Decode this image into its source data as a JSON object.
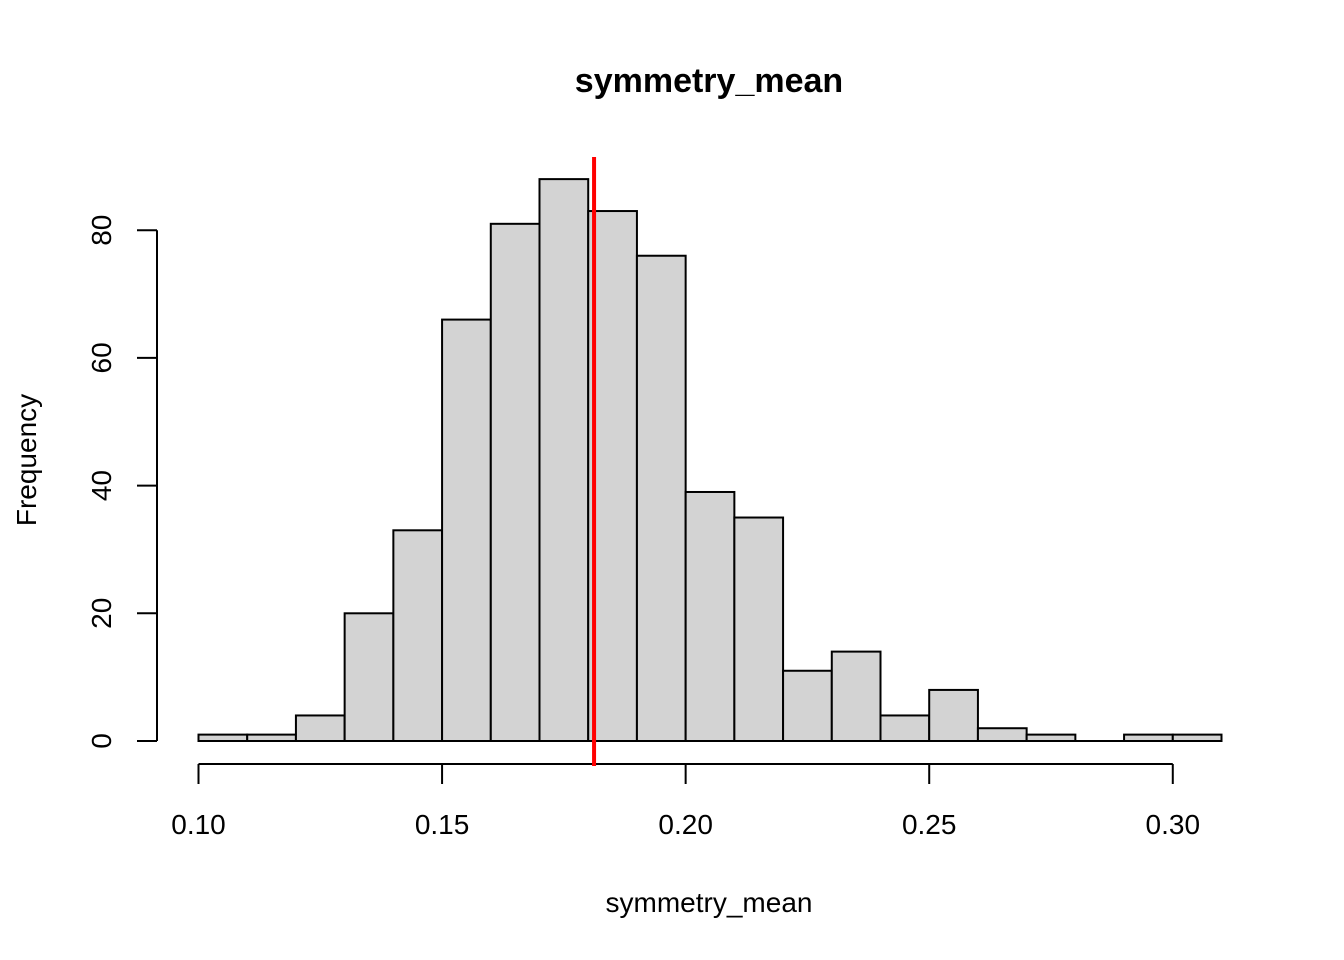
{
  "chart_data": {
    "type": "bar",
    "title": "symmetry_mean",
    "xlabel": "symmetry_mean",
    "ylabel": "Frequency",
    "xlim": [
      0.1,
      0.31
    ],
    "ylim": [
      0,
      88
    ],
    "x_ticks": [
      "0.10",
      "0.15",
      "0.20",
      "0.25",
      "0.30"
    ],
    "y_ticks": [
      "0",
      "20",
      "40",
      "60",
      "80"
    ],
    "bins": [
      {
        "from": 0.1,
        "to": 0.11,
        "count": 1
      },
      {
        "from": 0.11,
        "to": 0.12,
        "count": 1
      },
      {
        "from": 0.12,
        "to": 0.13,
        "count": 4
      },
      {
        "from": 0.13,
        "to": 0.14,
        "count": 20
      },
      {
        "from": 0.14,
        "to": 0.15,
        "count": 33
      },
      {
        "from": 0.15,
        "to": 0.16,
        "count": 66
      },
      {
        "from": 0.16,
        "to": 0.17,
        "count": 81
      },
      {
        "from": 0.17,
        "to": 0.18,
        "count": 88
      },
      {
        "from": 0.18,
        "to": 0.19,
        "count": 83
      },
      {
        "from": 0.19,
        "to": 0.2,
        "count": 76
      },
      {
        "from": 0.2,
        "to": 0.21,
        "count": 39
      },
      {
        "from": 0.21,
        "to": 0.22,
        "count": 35
      },
      {
        "from": 0.22,
        "to": 0.23,
        "count": 11
      },
      {
        "from": 0.23,
        "to": 0.24,
        "count": 14
      },
      {
        "from": 0.24,
        "to": 0.25,
        "count": 4
      },
      {
        "from": 0.25,
        "to": 0.26,
        "count": 8
      },
      {
        "from": 0.26,
        "to": 0.27,
        "count": 2
      },
      {
        "from": 0.27,
        "to": 0.28,
        "count": 1
      },
      {
        "from": 0.28,
        "to": 0.29,
        "count": 0
      },
      {
        "from": 0.29,
        "to": 0.3,
        "count": 1
      },
      {
        "from": 0.3,
        "to": 0.31,
        "count": 1
      }
    ],
    "mean_line": {
      "x": 0.1812,
      "color": "#ff0000"
    },
    "grid": false,
    "legend": "none"
  }
}
